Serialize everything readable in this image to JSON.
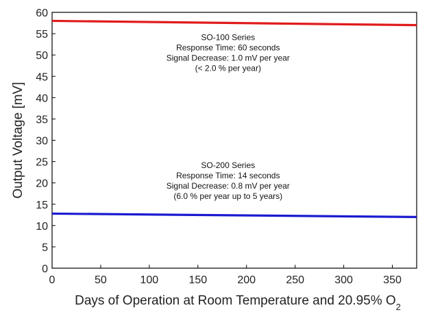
{
  "chart_data": {
    "type": "line",
    "xlabel": "Days of Operation at Room Temperature and 20.95% O",
    "xlabel_subscript": "2",
    "ylabel": "Output Voltage [mV]",
    "xlim": [
      0,
      375
    ],
    "ylim": [
      0,
      60
    ],
    "xticks": [
      0,
      50,
      100,
      150,
      200,
      250,
      300,
      350
    ],
    "yticks": [
      0,
      5,
      10,
      15,
      20,
      25,
      30,
      35,
      40,
      45,
      50,
      55,
      60
    ],
    "grid": false,
    "legend": "none",
    "series": [
      {
        "name": "SO-100 Series",
        "color": "#e01b1b",
        "x": [
          0,
          375
        ],
        "y": [
          58.0,
          57.0
        ]
      },
      {
        "name": "SO-200 Series",
        "color": "#1a1ad0",
        "x": [
          0,
          375
        ],
        "y": [
          12.8,
          12.0
        ]
      }
    ],
    "annotations": [
      {
        "lines": [
          "SO-100 Series",
          "Response Time: 60 seconds",
          "Signal Decrease: 1.0 mV per year",
          "(< 2.0 % per year)"
        ],
        "x": 181,
        "y": 53.5
      },
      {
        "lines": [
          "SO-200 Series",
          "Response Time: 14 seconds",
          "Signal Decrease: 0.8 mV per year",
          "(6.0 % per year up to 5 years)"
        ],
        "x": 181,
        "y": 23.5
      }
    ]
  }
}
